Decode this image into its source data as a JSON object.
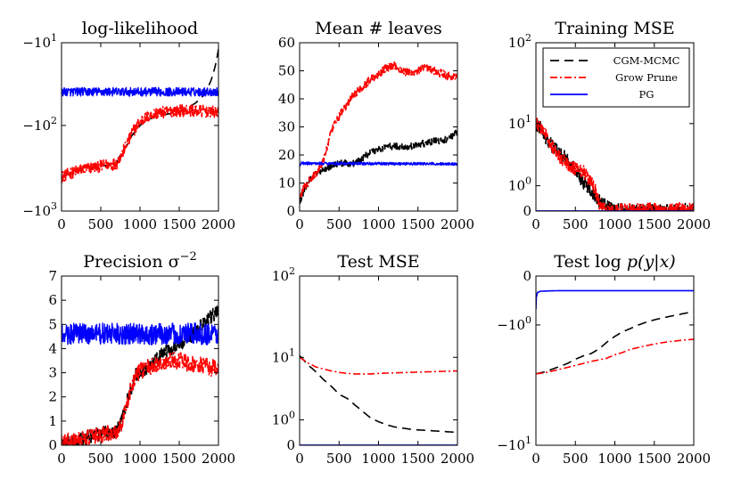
{
  "figure": {
    "title": ""
  },
  "chart_data": [
    {
      "type": "line",
      "title": "log-likelihood",
      "xlabel": "",
      "ylabel": "",
      "xlim": [
        0,
        2000
      ],
      "ylim": [
        -1000,
        -10
      ],
      "yscale": "symlog",
      "xticks": [
        "0",
        "500",
        "1000",
        "1500",
        "2000"
      ],
      "yticks": [
        {
          "v": -10,
          "label": "−10",
          "exp": "1"
        },
        {
          "v": -100,
          "label": "−10",
          "exp": "2"
        },
        {
          "v": -1000,
          "label": "−10",
          "exp": "3"
        }
      ],
      "noise": [
        0,
        0.07,
        0.05
      ],
      "series": [
        {
          "name": "CGM-MCMC",
          "color": "#000000",
          "dash": "10,6",
          "x": [
            0,
            100,
            200,
            300,
            400,
            500,
            600,
            700,
            750,
            800,
            900,
            1000,
            1100,
            1200,
            1300,
            1400,
            1500,
            1600,
            1700,
            1800,
            1900,
            2000
          ],
          "values": [
            -400,
            -360,
            -340,
            -325,
            -310,
            -300,
            -290,
            -280,
            -220,
            -190,
            -130,
            -100,
            -85,
            -80,
            -75,
            -72,
            -68,
            -62,
            -55,
            -45,
            -30,
            -12
          ]
        },
        {
          "name": "Grow Prune",
          "color": "#ff0000",
          "dash": "8,3,2,3",
          "x": [
            0,
            100,
            200,
            300,
            400,
            500,
            600,
            700,
            750,
            800,
            900,
            1000,
            1100,
            1200,
            1400,
            1600,
            1800,
            2000
          ],
          "values": [
            -400,
            -360,
            -340,
            -325,
            -310,
            -300,
            -290,
            -280,
            -230,
            -190,
            -120,
            -90,
            -78,
            -72,
            -68,
            -66,
            -68,
            -70
          ]
        },
        {
          "name": "PG",
          "color": "#0000ff",
          "dash": "",
          "x": [
            0,
            2000
          ],
          "values": [
            -40,
            -40
          ]
        }
      ]
    },
    {
      "type": "line",
      "title": "Mean # leaves",
      "xlabel": "",
      "ylabel": "",
      "xlim": [
        0,
        2000
      ],
      "ylim": [
        0,
        60
      ],
      "yscale": "linear",
      "xticks": [
        "0",
        "500",
        "1000",
        "1500",
        "2000"
      ],
      "yticks": [
        {
          "v": 0,
          "label": "0"
        },
        {
          "v": 10,
          "label": "10"
        },
        {
          "v": 20,
          "label": "20"
        },
        {
          "v": 30,
          "label": "30"
        },
        {
          "v": 40,
          "label": "40"
        },
        {
          "v": 50,
          "label": "50"
        },
        {
          "v": 60,
          "label": "60"
        }
      ],
      "noise": [
        1.2,
        1.5,
        0.5
      ],
      "series": [
        {
          "name": "CGM-MCMC",
          "color": "#000000",
          "dash": "10,6",
          "x": [
            0,
            50,
            100,
            200,
            300,
            400,
            500,
            600,
            700,
            800,
            900,
            1000,
            1100,
            1200,
            1300,
            1400,
            1500,
            1600,
            1700,
            1800,
            1900,
            2000
          ],
          "values": [
            3,
            7,
            10,
            13,
            15,
            16,
            17,
            17,
            17,
            19,
            21,
            22,
            23,
            23,
            23,
            23,
            24,
            24,
            25,
            25,
            26,
            28
          ]
        },
        {
          "name": "Grow Prune",
          "color": "#ff0000",
          "dash": "8,3,2,3",
          "x": [
            0,
            50,
            100,
            200,
            300,
            400,
            500,
            600,
            700,
            800,
            900,
            1000,
            1100,
            1200,
            1300,
            1400,
            1500,
            1600,
            1700,
            1800,
            1900,
            2000
          ],
          "values": [
            5,
            8,
            10,
            13,
            18,
            28,
            34,
            38,
            42,
            44,
            47,
            49,
            51,
            52,
            50,
            49,
            50,
            51,
            50,
            49,
            48,
            48
          ]
        },
        {
          "name": "PG",
          "color": "#0000ff",
          "dash": "",
          "x": [
            0,
            20,
            2000
          ],
          "values": [
            16,
            17,
            16.8
          ]
        }
      ]
    },
    {
      "type": "line",
      "title": "Training MSE",
      "xlabel": "",
      "ylabel": "",
      "xlim": [
        0,
        2000
      ],
      "ylim": [
        0,
        100
      ],
      "yscale": "symlog",
      "xticks": [
        "0",
        "500",
        "1000",
        "1500",
        "2000"
      ],
      "yticks": [
        {
          "v": 0,
          "label": "0"
        },
        {
          "v": 1,
          "label": "10",
          "exp": "0"
        },
        {
          "v": 10,
          "label": "10",
          "exp": "1"
        },
        {
          "v": 100,
          "label": "10",
          "exp": "2"
        }
      ],
      "noise": [
        0.08,
        0.08,
        0
      ],
      "legend": {
        "position": "upper-right",
        "entries": [
          "CGM-MCMC",
          "Grow Prune",
          "PG"
        ]
      },
      "series": [
        {
          "name": "CGM-MCMC",
          "color": "#000000",
          "dash": "10,6",
          "x": [
            0,
            50,
            100,
            200,
            300,
            400,
            500,
            600,
            650,
            700,
            750,
            800,
            850,
            900,
            950,
            1000,
            1100,
            1500,
            2000
          ],
          "values": [
            10,
            9,
            7,
            5,
            4,
            3,
            2,
            1.2,
            1.0,
            0.8,
            0.5,
            0.35,
            0.25,
            0.12,
            0.05,
            0.03,
            0.02,
            0.02,
            0.03
          ]
        },
        {
          "name": "Grow Prune",
          "color": "#ff0000",
          "dash": "8,3,2,3",
          "x": [
            0,
            50,
            100,
            200,
            300,
            400,
            500,
            600,
            650,
            700,
            750,
            800,
            850,
            900,
            950,
            1000,
            1100,
            1500,
            2000
          ],
          "values": [
            10,
            9,
            8,
            5,
            3.5,
            2.5,
            2.2,
            2.0,
            1.5,
            1.2,
            0.8,
            0.2,
            0.08,
            0.04,
            0.03,
            0.03,
            0.03,
            0.04,
            0.05
          ]
        },
        {
          "name": "PG",
          "color": "#0000ff",
          "dash": "",
          "x": [
            0,
            2000
          ],
          "values": [
            0.002,
            0.002
          ]
        }
      ]
    },
    {
      "type": "line",
      "title": "Precision σ",
      "title_sup": "−2",
      "xlabel": "",
      "ylabel": "",
      "xlim": [
        0,
        2000
      ],
      "ylim": [
        0,
        7
      ],
      "yscale": "linear",
      "xticks": [
        "0",
        "500",
        "1000",
        "1500",
        "2000"
      ],
      "yticks": [
        {
          "v": 0,
          "label": "0"
        },
        {
          "v": 1,
          "label": "1"
        },
        {
          "v": 2,
          "label": "2"
        },
        {
          "v": 3,
          "label": "3"
        },
        {
          "v": 4,
          "label": "4"
        },
        {
          "v": 5,
          "label": "5"
        },
        {
          "v": 6,
          "label": "6"
        },
        {
          "v": 7,
          "label": "7"
        }
      ],
      "noise": [
        0.3,
        0.35,
        0.45
      ],
      "series": [
        {
          "name": "CGM-MCMC",
          "color": "#000000",
          "dash": "10,6",
          "x": [
            0,
            100,
            200,
            300,
            400,
            500,
            600,
            700,
            750,
            800,
            850,
            900,
            950,
            1000,
            1100,
            1200,
            1300,
            1400,
            1500,
            1600,
            1700,
            1800,
            1900,
            2000
          ],
          "values": [
            0.1,
            0.15,
            0.2,
            0.3,
            0.4,
            0.5,
            0.55,
            0.6,
            0.9,
            1.4,
            2.0,
            2.5,
            2.9,
            3.0,
            3.2,
            3.5,
            3.8,
            4.0,
            4.2,
            4.4,
            4.7,
            5.0,
            5.3,
            5.6
          ]
        },
        {
          "name": "Grow Prune",
          "color": "#ff0000",
          "dash": "8,3,2,3",
          "x": [
            0,
            100,
            200,
            300,
            400,
            500,
            600,
            700,
            750,
            800,
            850,
            900,
            950,
            1000,
            1100,
            1200,
            1300,
            1400,
            1500,
            1600,
            1700,
            1800,
            1900,
            2000
          ],
          "values": [
            0.1,
            0.15,
            0.2,
            0.3,
            0.35,
            0.45,
            0.5,
            0.55,
            0.8,
            1.3,
            1.9,
            2.5,
            2.9,
            3.1,
            3.2,
            3.3,
            3.4,
            3.5,
            3.5,
            3.4,
            3.3,
            3.3,
            3.2,
            3.2
          ]
        },
        {
          "name": "PG",
          "color": "#0000ff",
          "dash": "",
          "x": [
            0,
            2000
          ],
          "values": [
            4.6,
            4.6
          ]
        }
      ]
    },
    {
      "type": "line",
      "title": "Test MSE",
      "xlabel": "",
      "ylabel": "",
      "xlim": [
        0,
        2000
      ],
      "ylim": [
        0,
        100
      ],
      "yscale": "symlog",
      "xticks": [
        "0",
        "500",
        "1000",
        "1500",
        "2000"
      ],
      "yticks": [
        {
          "v": 0,
          "label": "0"
        },
        {
          "v": 1,
          "label": "10",
          "exp": "0"
        },
        {
          "v": 10,
          "label": "10",
          "exp": "1"
        },
        {
          "v": 100,
          "label": "10",
          "exp": "2"
        }
      ],
      "noise": [
        0,
        0,
        0
      ],
      "series": [
        {
          "name": "CGM-MCMC",
          "color": "#000000",
          "dash": "10,6",
          "x": [
            0,
            100,
            200,
            300,
            400,
            500,
            600,
            700,
            800,
            900,
            1000,
            1100,
            1200,
            1300,
            1400,
            1500,
            1600,
            1700,
            1800,
            1900,
            2000
          ],
          "values": [
            10.5,
            8,
            6.5,
            5,
            4,
            3,
            2.6,
            2.0,
            1.5,
            1.1,
            0.9,
            0.75,
            0.65,
            0.6,
            0.55,
            0.52,
            0.5,
            0.48,
            0.46,
            0.44,
            0.42
          ]
        },
        {
          "name": "Grow Prune",
          "color": "#ff0000",
          "dash": "8,3,2,3",
          "x": [
            0,
            100,
            200,
            300,
            400,
            500,
            600,
            700,
            800,
            900,
            1000,
            1200,
            1400,
            1600,
            1800,
            2000
          ],
          "values": [
            10,
            8.5,
            7.5,
            7,
            6.6,
            6.3,
            6.1,
            6.0,
            6.0,
            6.0,
            6.1,
            6.2,
            6.3,
            6.4,
            6.5,
            6.6
          ]
        },
        {
          "name": "PG",
          "color": "#0000ff",
          "dash": "",
          "x": [
            0,
            2000
          ],
          "values": [
            0.002,
            0.002
          ]
        }
      ]
    },
    {
      "type": "line",
      "title": "Test log p(y|x)",
      "title_parts": [
        "Test ",
        "log",
        " p(y|x)"
      ],
      "xlabel": "",
      "ylabel": "",
      "xlim": [
        0,
        2000
      ],
      "ylim": [
        -10,
        0
      ],
      "yscale": "symlog",
      "xticks": [
        "0",
        "500",
        "1000",
        "1500",
        "2000"
      ],
      "yticks": [
        {
          "v": 0,
          "label": "0"
        },
        {
          "v": -1,
          "label": "−10",
          "exp": "0"
        },
        {
          "v": -10,
          "label": "−10",
          "exp": "1"
        }
      ],
      "noise": [
        0,
        0,
        0
      ],
      "series": [
        {
          "name": "CGM-MCMC",
          "color": "#000000",
          "dash": "10,6",
          "x": [
            0,
            100,
            200,
            300,
            400,
            500,
            600,
            700,
            800,
            900,
            1000,
            1100,
            1200,
            1300,
            1400,
            1500,
            1600,
            1700,
            1800,
            1900,
            2000
          ],
          "values": [
            -3.0,
            -2.9,
            -2.75,
            -2.6,
            -2.45,
            -2.25,
            -2.1,
            -2.0,
            -1.8,
            -1.55,
            -1.35,
            -1.2,
            -1.1,
            -1.0,
            -0.92,
            -0.86,
            -0.81,
            -0.77,
            -0.73,
            -0.69,
            -0.66
          ]
        },
        {
          "name": "Grow Prune",
          "color": "#ff0000",
          "dash": "8,3,2,3",
          "x": [
            0,
            100,
            200,
            300,
            400,
            500,
            600,
            700,
            800,
            900,
            1000,
            1100,
            1200,
            1300,
            1400,
            1500,
            1600,
            1700,
            1800,
            1900,
            2000
          ],
          "values": [
            -3.0,
            -2.95,
            -2.85,
            -2.75,
            -2.65,
            -2.55,
            -2.45,
            -2.35,
            -2.28,
            -2.2,
            -2.05,
            -1.95,
            -1.82,
            -1.75,
            -1.68,
            -1.62,
            -1.57,
            -1.53,
            -1.5,
            -1.47,
            -1.45
          ]
        },
        {
          "name": "PG",
          "color": "#0000ff",
          "dash": "",
          "x": [
            0,
            5,
            20,
            60,
            150,
            300,
            2000
          ],
          "values": [
            -0.6,
            -0.35,
            -0.26,
            -0.24,
            -0.235,
            -0.23,
            -0.23
          ]
        }
      ]
    }
  ]
}
